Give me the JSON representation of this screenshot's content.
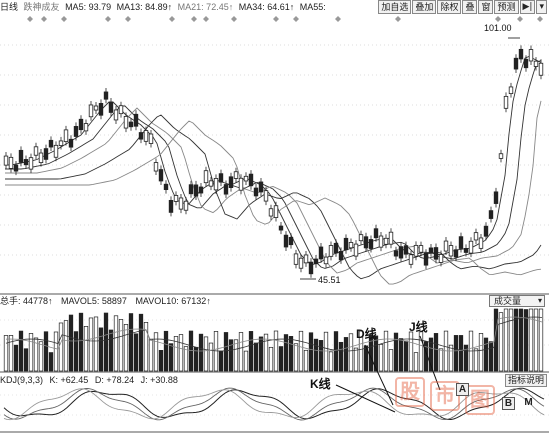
{
  "header": {
    "tag": "日线",
    "name": "跌神成友",
    "ma": [
      {
        "label": "MA5: 93.79",
        "color": "#333333"
      },
      {
        "label": "MA13: 84.89↑",
        "color": "#333333"
      },
      {
        "label": "MA21: 72.45↑",
        "color": "#777777"
      },
      {
        "label": "MA34: 64.61↑",
        "color": "#333333"
      },
      {
        "label": "MA55:",
        "color": "#333333"
      }
    ]
  },
  "toolbar": [
    {
      "label": "加自选",
      "icon": ""
    },
    {
      "label": "叠加",
      "icon": ""
    },
    {
      "label": "除权",
      "icon": ""
    },
    {
      "label": "叠",
      "icon": ""
    },
    {
      "label": "窗",
      "icon": ""
    },
    {
      "label": "预测",
      "icon": ""
    },
    {
      "label": "",
      "icon": "▶|"
    },
    {
      "label": "",
      "icon": "▾"
    }
  ],
  "price_labels": {
    "high": "101.00",
    "low": "45.51"
  },
  "volume": {
    "header": [
      "总手: 44778↑",
      "MAVOL5: 58897",
      "MAVOL10: 67132↑"
    ],
    "selector": "成交量"
  },
  "kdj": {
    "header": [
      "KDJ(9,3,3)",
      "K: +62.45",
      "D: +78.24",
      "J: +30.88"
    ],
    "indicator_button": "指标说明"
  },
  "annotations": {
    "d_line": "D线",
    "j_line": "J线",
    "k_line": "K线"
  },
  "side_buttons": [
    "A",
    "B",
    "M"
  ],
  "watermark": [
    "股",
    "市",
    "图"
  ],
  "colors": {
    "candle": "#222222",
    "ma_dark": "#333333",
    "ma_gray": "#888888",
    "diamond": "#999999",
    "watermark": "#e45c3c"
  }
}
